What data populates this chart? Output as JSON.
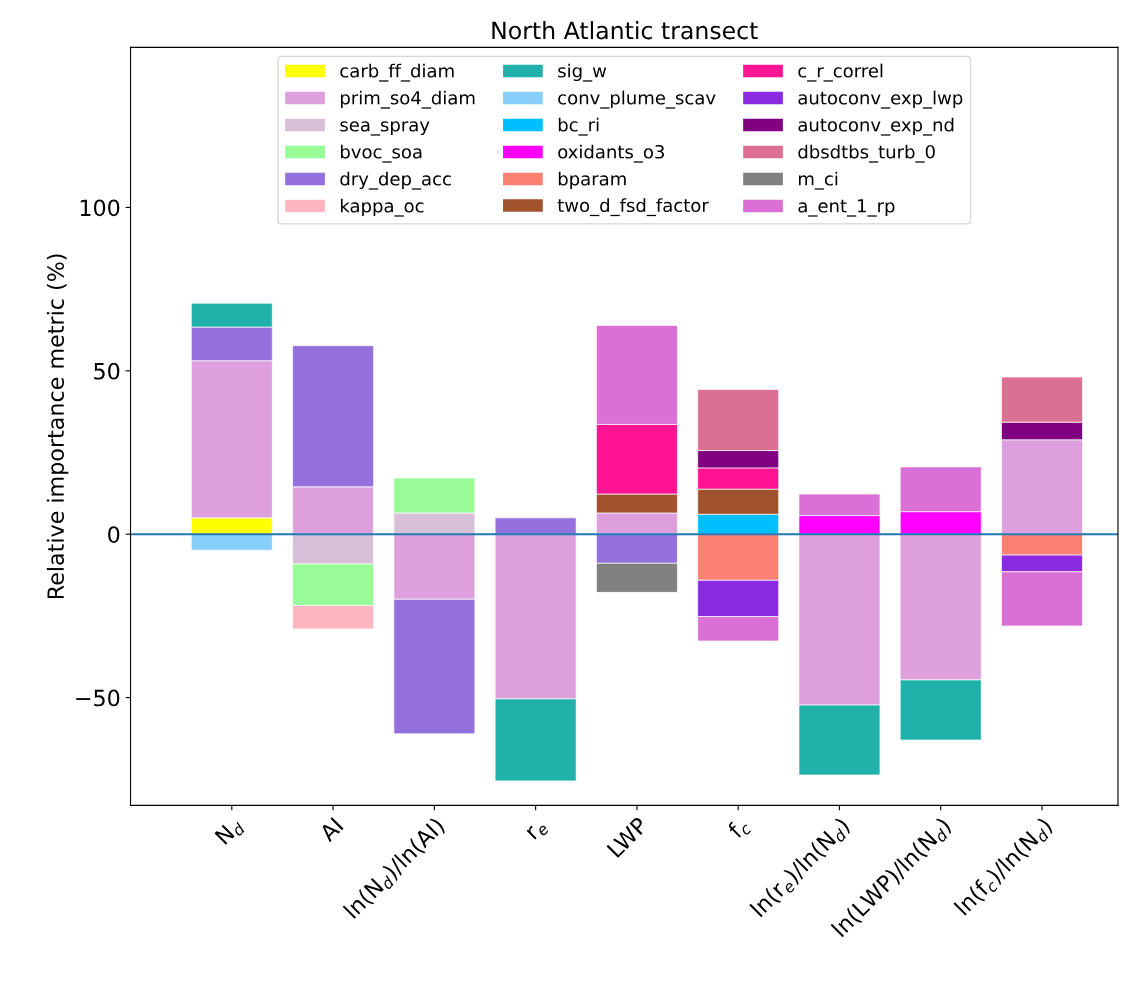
{
  "chart_data": {
    "type": "bar",
    "stacked": true,
    "title": "North Atlantic transect",
    "ylabel": "Relative importance metric (%)",
    "categories": [
      "N$_{d}$",
      "AI",
      "ln(N$_{d}$)/ln(AI)",
      "r$_{e}$",
      "LWP",
      "f$_{c}$",
      "ln(r$_{e}$)/ln(N$_{d}$)",
      "ln(LWP)/ln(N$_{d}$)",
      "ln(f$_{c}$)/ln(N$_{d}$)"
    ],
    "ylim": [
      -83,
      149
    ],
    "yticks": [
      {
        "value": -50,
        "label": "−50"
      },
      0,
      50,
      100
    ],
    "ref_lines": [
      {
        "axis": "y",
        "value": 0,
        "color": "#1f77b4"
      }
    ],
    "legend": "top",
    "grid": false,
    "series": [
      {
        "name": "carb_ff_diam",
        "color": "#ffff00",
        "values": [
          5.0,
          null,
          null,
          null,
          null,
          null,
          null,
          null,
          null
        ]
      },
      {
        "name": "prim_so4_diam",
        "color": "#dda0dd",
        "values": [
          48.1,
          14.5,
          -19.9,
          -50.4,
          6.5,
          null,
          -52.3,
          -44.6,
          28.9
        ]
      },
      {
        "name": "sea_spray",
        "color": "#d8bfd8",
        "values": [
          null,
          -9.1,
          6.5,
          null,
          null,
          null,
          null,
          null,
          null
        ]
      },
      {
        "name": "bvoc_soa",
        "color": "#98fb98",
        "values": [
          null,
          -12.7,
          10.7,
          null,
          null,
          null,
          null,
          null,
          null
        ]
      },
      {
        "name": "dry_dep_acc",
        "color": "#9370db",
        "values": [
          10.3,
          43.2,
          -41.2,
          5.0,
          -8.9,
          null,
          null,
          null,
          null
        ]
      },
      {
        "name": "kappa_oc",
        "color": "#ffb6c1",
        "values": [
          null,
          -7.2,
          null,
          null,
          null,
          null,
          null,
          null,
          null
        ]
      },
      {
        "name": "sig_w",
        "color": "#20b2aa",
        "values": [
          7.3,
          null,
          null,
          -25.1,
          null,
          null,
          -21.4,
          -18.4,
          null
        ]
      },
      {
        "name": "conv_plume_scav",
        "color": "#87cefa",
        "values": [
          -4.9,
          null,
          null,
          null,
          null,
          null,
          null,
          null,
          null
        ]
      },
      {
        "name": "bc_ri",
        "color": "#00bfff",
        "values": [
          null,
          null,
          null,
          null,
          null,
          6.1,
          null,
          null,
          null
        ]
      },
      {
        "name": "oxidants_o3",
        "color": "#ff00ff",
        "values": [
          null,
          null,
          null,
          null,
          null,
          null,
          5.7,
          6.9,
          null
        ]
      },
      {
        "name": "bparam",
        "color": "#fa8072",
        "values": [
          null,
          null,
          null,
          null,
          null,
          -14.1,
          null,
          null,
          -6.4
        ]
      },
      {
        "name": "two_d_fsd_factor",
        "color": "#a0522d",
        "values": [
          null,
          null,
          null,
          null,
          5.8,
          7.7,
          null,
          null,
          null
        ]
      },
      {
        "name": "c_r_correl",
        "color": "#ff1493",
        "values": [
          null,
          null,
          null,
          null,
          21.3,
          6.5,
          null,
          null,
          null
        ]
      },
      {
        "name": "autoconv_exp_lwp",
        "color": "#8a2be2",
        "values": [
          null,
          null,
          null,
          null,
          null,
          -11.1,
          null,
          null,
          -5.1
        ]
      },
      {
        "name": "autoconv_exp_nd",
        "color": "#800080",
        "values": [
          null,
          null,
          null,
          null,
          null,
          5.3,
          null,
          null,
          5.4
        ]
      },
      {
        "name": "dbsdtbs_turb_0",
        "color": "#db7093",
        "values": [
          null,
          null,
          null,
          null,
          null,
          18.7,
          null,
          null,
          13.8
        ]
      },
      {
        "name": "m_ci",
        "color": "#808080",
        "values": [
          null,
          null,
          null,
          null,
          -8.9,
          null,
          null,
          null,
          null
        ]
      },
      {
        "name": "a_ent_1_rp",
        "color": "#da70d6",
        "values": [
          null,
          null,
          null,
          null,
          30.3,
          -7.5,
          6.6,
          13.7,
          -16.6
        ]
      }
    ]
  }
}
